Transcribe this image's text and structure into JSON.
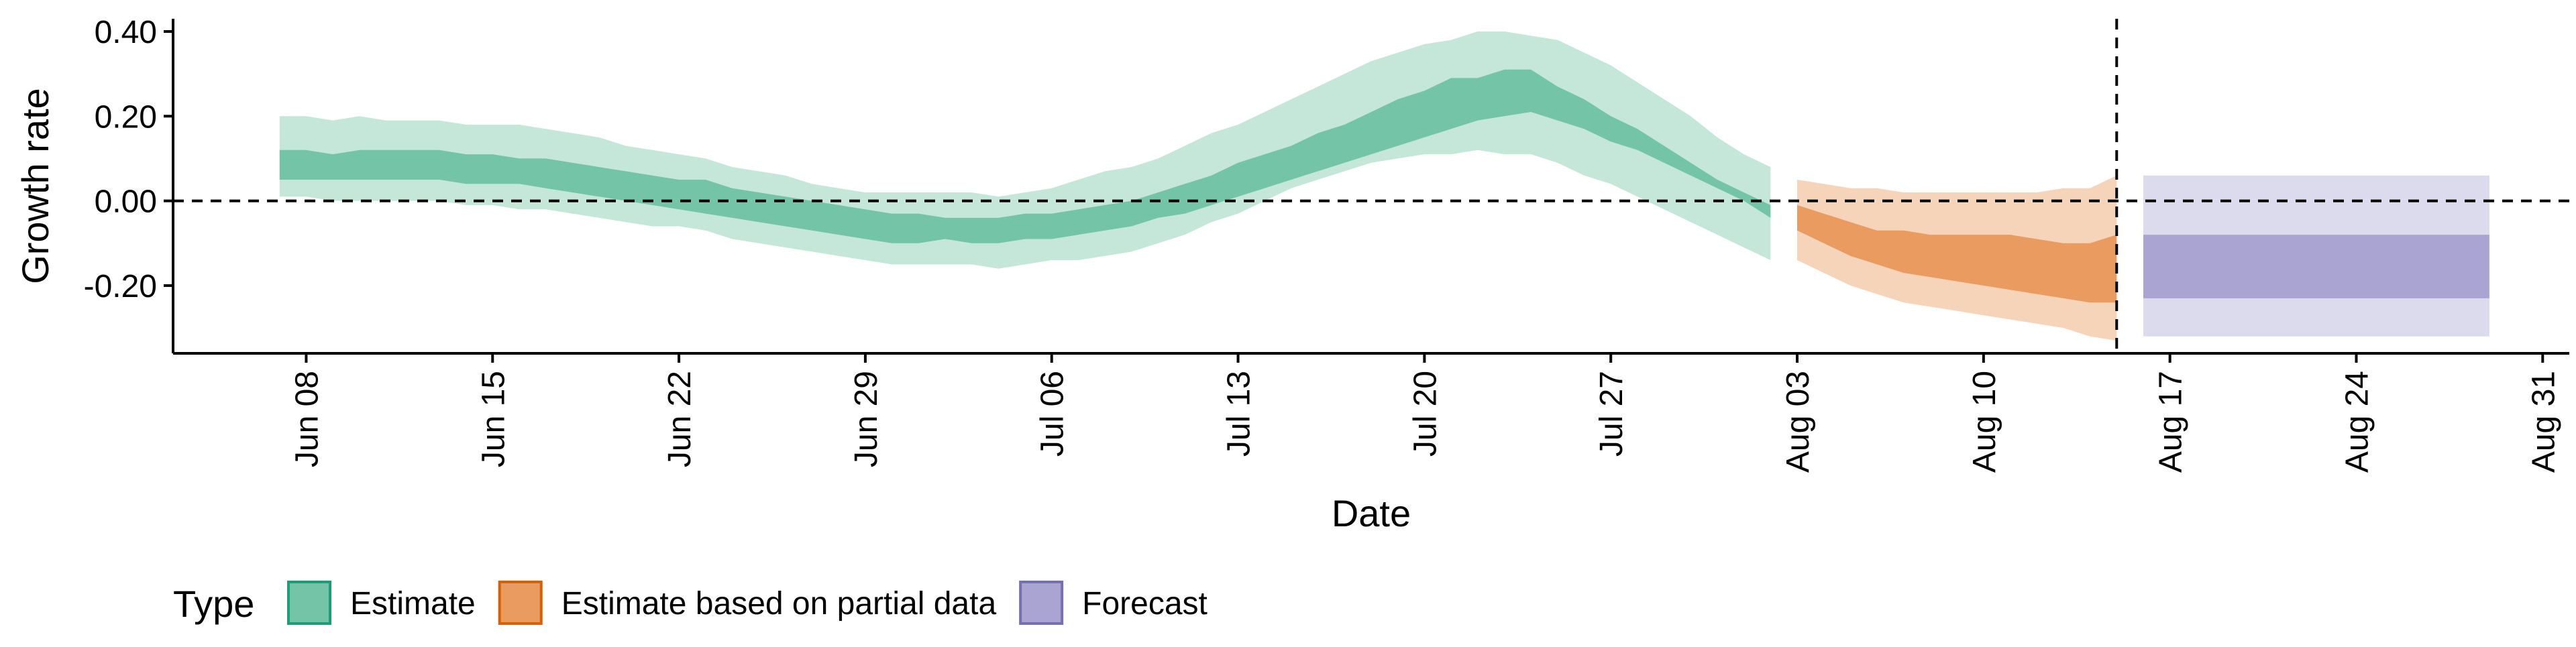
{
  "chart_data": {
    "type": "area",
    "xlabel": "Date",
    "ylabel": "Growth rate",
    "ylim": [
      -0.36,
      0.43
    ],
    "xlim": [
      "2020-06-03",
      "2020-09-01"
    ],
    "yticks": [
      {
        "value": -0.2,
        "label": "-0.20"
      },
      {
        "value": 0.0,
        "label": "0.00"
      },
      {
        "value": 0.2,
        "label": "0.20"
      },
      {
        "value": 0.4,
        "label": "0.40"
      }
    ],
    "xticks": [
      {
        "date": "2020-06-08",
        "label": "Jun 08"
      },
      {
        "date": "2020-06-15",
        "label": "Jun 15"
      },
      {
        "date": "2020-06-22",
        "label": "Jun 22"
      },
      {
        "date": "2020-06-29",
        "label": "Jun 29"
      },
      {
        "date": "2020-07-06",
        "label": "Jul 06"
      },
      {
        "date": "2020-07-13",
        "label": "Jul 13"
      },
      {
        "date": "2020-07-20",
        "label": "Jul 20"
      },
      {
        "date": "2020-07-27",
        "label": "Jul 27"
      },
      {
        "date": "2020-08-03",
        "label": "Aug 03"
      },
      {
        "date": "2020-08-10",
        "label": "Aug 10"
      },
      {
        "date": "2020-08-17",
        "label": "Aug 17"
      },
      {
        "date": "2020-08-24",
        "label": "Aug 24"
      },
      {
        "date": "2020-08-31",
        "label": "Aug 31"
      }
    ],
    "hline": 0,
    "vline": "2020-08-15",
    "grid": false,
    "legend": {
      "title": "Type",
      "position": "bottom-left",
      "entries": [
        {
          "label": "Estimate",
          "fill": "#74c5a8",
          "stroke": "#1b9e77"
        },
        {
          "label": "Estimate based on partial data",
          "fill": "#e99b60",
          "stroke": "#d95f02"
        },
        {
          "label": "Forecast",
          "fill": "#a9a4d1",
          "stroke": "#7570b3"
        }
      ]
    },
    "series": [
      {
        "name": "Estimate",
        "colors": {
          "outer": "#c4e7da",
          "inner": "#74c5a8"
        },
        "x": [
          "2020-06-07",
          "2020-06-08",
          "2020-06-09",
          "2020-06-10",
          "2020-06-11",
          "2020-06-12",
          "2020-06-13",
          "2020-06-14",
          "2020-06-15",
          "2020-06-16",
          "2020-06-17",
          "2020-06-18",
          "2020-06-19",
          "2020-06-20",
          "2020-06-21",
          "2020-06-22",
          "2020-06-23",
          "2020-06-24",
          "2020-06-25",
          "2020-06-26",
          "2020-06-27",
          "2020-06-28",
          "2020-06-29",
          "2020-06-30",
          "2020-07-01",
          "2020-07-02",
          "2020-07-03",
          "2020-07-04",
          "2020-07-05",
          "2020-07-06",
          "2020-07-07",
          "2020-07-08",
          "2020-07-09",
          "2020-07-10",
          "2020-07-11",
          "2020-07-12",
          "2020-07-13",
          "2020-07-14",
          "2020-07-15",
          "2020-07-16",
          "2020-07-17",
          "2020-07-18",
          "2020-07-19",
          "2020-07-20",
          "2020-07-21",
          "2020-07-22",
          "2020-07-23",
          "2020-07-24",
          "2020-07-25",
          "2020-07-26",
          "2020-07-27",
          "2020-07-28",
          "2020-07-29",
          "2020-07-30",
          "2020-07-31",
          "2020-08-01",
          "2020-08-02"
        ],
        "upper90": [
          0.2,
          0.2,
          0.19,
          0.2,
          0.19,
          0.19,
          0.19,
          0.18,
          0.18,
          0.18,
          0.17,
          0.16,
          0.15,
          0.13,
          0.12,
          0.11,
          0.1,
          0.08,
          0.07,
          0.06,
          0.04,
          0.03,
          0.02,
          0.02,
          0.02,
          0.02,
          0.02,
          0.01,
          0.02,
          0.03,
          0.05,
          0.07,
          0.08,
          0.1,
          0.13,
          0.16,
          0.18,
          0.21,
          0.24,
          0.27,
          0.3,
          0.33,
          0.35,
          0.37,
          0.38,
          0.4,
          0.4,
          0.39,
          0.38,
          0.35,
          0.32,
          0.28,
          0.24,
          0.2,
          0.15,
          0.11,
          0.08
        ],
        "upper50": [
          0.12,
          0.12,
          0.11,
          0.12,
          0.12,
          0.12,
          0.12,
          0.11,
          0.11,
          0.1,
          0.1,
          0.09,
          0.08,
          0.07,
          0.06,
          0.05,
          0.05,
          0.03,
          0.02,
          0.01,
          0.0,
          -0.01,
          -0.02,
          -0.03,
          -0.03,
          -0.04,
          -0.04,
          -0.04,
          -0.03,
          -0.03,
          -0.02,
          -0.01,
          0.0,
          0.02,
          0.04,
          0.06,
          0.09,
          0.11,
          0.13,
          0.16,
          0.18,
          0.21,
          0.24,
          0.26,
          0.29,
          0.29,
          0.31,
          0.31,
          0.27,
          0.24,
          0.2,
          0.17,
          0.13,
          0.09,
          0.05,
          0.02,
          -0.01
        ],
        "lower50": [
          0.05,
          0.05,
          0.05,
          0.05,
          0.05,
          0.05,
          0.05,
          0.04,
          0.04,
          0.04,
          0.03,
          0.02,
          0.01,
          0.0,
          -0.01,
          -0.02,
          -0.03,
          -0.04,
          -0.05,
          -0.06,
          -0.07,
          -0.08,
          -0.09,
          -0.1,
          -0.1,
          -0.09,
          -0.1,
          -0.1,
          -0.09,
          -0.09,
          -0.08,
          -0.07,
          -0.06,
          -0.04,
          -0.03,
          -0.01,
          0.01,
          0.03,
          0.05,
          0.07,
          0.09,
          0.11,
          0.13,
          0.15,
          0.17,
          0.19,
          0.2,
          0.21,
          0.19,
          0.17,
          0.14,
          0.12,
          0.09,
          0.06,
          0.03,
          0.0,
          -0.04
        ],
        "lower90": [
          0.01,
          0.01,
          0.0,
          0.0,
          0.0,
          0.0,
          0.0,
          -0.01,
          -0.01,
          -0.02,
          -0.02,
          -0.03,
          -0.04,
          -0.05,
          -0.06,
          -0.06,
          -0.07,
          -0.09,
          -0.1,
          -0.11,
          -0.12,
          -0.13,
          -0.14,
          -0.15,
          -0.15,
          -0.15,
          -0.15,
          -0.16,
          -0.15,
          -0.14,
          -0.14,
          -0.13,
          -0.12,
          -0.1,
          -0.08,
          -0.05,
          -0.03,
          0.0,
          0.03,
          0.05,
          0.07,
          0.09,
          0.1,
          0.11,
          0.11,
          0.12,
          0.11,
          0.11,
          0.09,
          0.06,
          0.04,
          0.01,
          -0.02,
          -0.05,
          -0.08,
          -0.11,
          -0.14
        ]
      },
      {
        "name": "Estimate based on partial data",
        "colors": {
          "outer": "#f5d4ba",
          "inner": "#e99b60"
        },
        "x": [
          "2020-08-03",
          "2020-08-04",
          "2020-08-05",
          "2020-08-06",
          "2020-08-07",
          "2020-08-08",
          "2020-08-09",
          "2020-08-10",
          "2020-08-11",
          "2020-08-12",
          "2020-08-13",
          "2020-08-14",
          "2020-08-15"
        ],
        "upper90": [
          0.05,
          0.04,
          0.03,
          0.03,
          0.02,
          0.02,
          0.02,
          0.02,
          0.02,
          0.02,
          0.03,
          0.03,
          0.06
        ],
        "upper50": [
          -0.01,
          -0.03,
          -0.05,
          -0.07,
          -0.07,
          -0.08,
          -0.08,
          -0.08,
          -0.08,
          -0.09,
          -0.1,
          -0.1,
          -0.08
        ],
        "lower50": [
          -0.07,
          -0.1,
          -0.13,
          -0.15,
          -0.17,
          -0.18,
          -0.19,
          -0.2,
          -0.21,
          -0.22,
          -0.23,
          -0.24,
          -0.24
        ],
        "lower90": [
          -0.14,
          -0.17,
          -0.2,
          -0.22,
          -0.24,
          -0.25,
          -0.26,
          -0.27,
          -0.28,
          -0.29,
          -0.3,
          -0.32,
          -0.33
        ]
      },
      {
        "name": "Forecast",
        "colors": {
          "outer": "#dcdaed",
          "inner": "#a9a4d1"
        },
        "x": [
          "2020-08-16",
          "2020-08-29"
        ],
        "upper90": [
          0.06,
          0.06
        ],
        "upper50": [
          -0.08,
          -0.08
        ],
        "lower50": [
          -0.23,
          -0.23
        ],
        "lower90": [
          -0.32,
          -0.32
        ]
      }
    ]
  }
}
